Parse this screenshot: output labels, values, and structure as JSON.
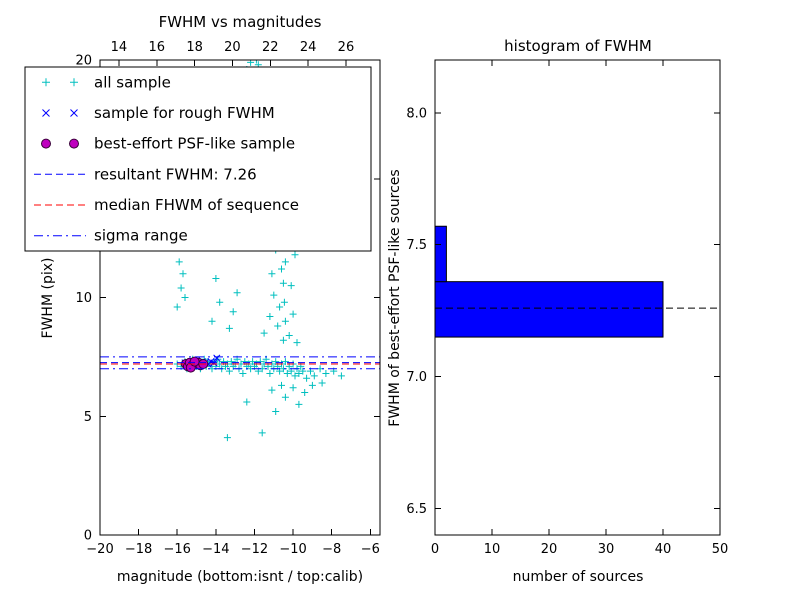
{
  "figure": {
    "background": "#ffffff"
  },
  "chart_data": [
    {
      "type": "scatter",
      "title": "FWHM vs magnitudes",
      "xlabel": "magnitude (bottom:isnt / top:calib)",
      "ylabel": "FWHM (pix)",
      "xlim": [
        -20,
        -5.5
      ],
      "ylim": [
        0,
        20
      ],
      "x_ticks": [
        -20,
        -18,
        -16,
        -14,
        -12,
        -10,
        -8,
        -6
      ],
      "top_axis": {
        "label": "calib",
        "ticks": [
          14,
          16,
          18,
          20,
          22,
          24,
          26
        ],
        "range": [
          13.0,
          27.8
        ]
      },
      "y_ticks": [
        0,
        5,
        10,
        15,
        20
      ],
      "series": [
        {
          "name": "all sample",
          "marker": "plus",
          "color": "#00bfbf",
          "points": [
            [
              -16.0,
              7.2
            ],
            [
              -15.8,
              7.1
            ],
            [
              -15.6,
              7.3
            ],
            [
              -15.5,
              7.0
            ],
            [
              -15.3,
              7.2
            ],
            [
              -15.2,
              7.4
            ],
            [
              -15.0,
              7.1
            ],
            [
              -14.9,
              7.3
            ],
            [
              -14.8,
              7.0
            ],
            [
              -14.7,
              7.2
            ],
            [
              -14.6,
              7.4
            ],
            [
              -14.5,
              7.1
            ],
            [
              -14.4,
              7.3
            ],
            [
              -14.3,
              7.2
            ],
            [
              -14.2,
              7.0
            ],
            [
              -14.1,
              7.3
            ],
            [
              -14.0,
              7.1
            ],
            [
              -13.9,
              7.4
            ],
            [
              -13.8,
              7.2
            ],
            [
              -13.7,
              7.0
            ],
            [
              -13.6,
              7.3
            ],
            [
              -13.5,
              7.1
            ],
            [
              -13.4,
              7.2
            ],
            [
              -13.3,
              6.9
            ],
            [
              -13.2,
              7.3
            ],
            [
              -13.1,
              7.1
            ],
            [
              -13.0,
              7.2
            ],
            [
              -12.9,
              7.4
            ],
            [
              -12.8,
              7.0
            ],
            [
              -12.7,
              7.2
            ],
            [
              -12.6,
              6.8
            ],
            [
              -12.5,
              7.3
            ],
            [
              -12.4,
              7.1
            ],
            [
              -12.3,
              7.2
            ],
            [
              -12.2,
              7.0
            ],
            [
              -12.1,
              7.3
            ],
            [
              -12.0,
              7.1
            ],
            [
              -11.9,
              7.2
            ],
            [
              -11.8,
              6.9
            ],
            [
              -11.7,
              7.3
            ],
            [
              -11.6,
              7.0
            ],
            [
              -11.5,
              7.2
            ],
            [
              -11.4,
              7.4
            ],
            [
              -11.3,
              7.1
            ],
            [
              -11.2,
              6.8
            ],
            [
              -11.1,
              7.2
            ],
            [
              -11.0,
              7.0
            ],
            [
              -10.9,
              7.3
            ],
            [
              -10.8,
              7.1
            ],
            [
              -10.7,
              6.9
            ],
            [
              -10.6,
              7.2
            ],
            [
              -10.5,
              7.0
            ],
            [
              -10.4,
              7.3
            ],
            [
              -10.3,
              6.8
            ],
            [
              -10.2,
              7.1
            ],
            [
              -10.1,
              6.9
            ],
            [
              -10.0,
              7.2
            ],
            [
              -9.9,
              6.7
            ],
            [
              -9.8,
              7.0
            ],
            [
              -9.7,
              6.8
            ],
            [
              -9.6,
              7.1
            ],
            [
              -9.5,
              6.9
            ],
            [
              -9.3,
              6.6
            ],
            [
              -9.1,
              6.9
            ],
            [
              -8.9,
              6.7
            ],
            [
              -8.6,
              7.0
            ],
            [
              -8.3,
              6.8
            ],
            [
              -7.9,
              6.9
            ],
            [
              -7.5,
              6.7
            ],
            [
              -10.5,
              8.2
            ],
            [
              -10.4,
              9.0
            ],
            [
              -10.45,
              9.8
            ],
            [
              -10.5,
              10.6
            ],
            [
              -10.4,
              11.5
            ],
            [
              -10.5,
              12.3
            ],
            [
              -10.45,
              13.2
            ],
            [
              -10.4,
              14.1
            ],
            [
              -10.5,
              15.0
            ],
            [
              -10.45,
              16.0
            ],
            [
              -10.4,
              17.1
            ],
            [
              -10.5,
              18.2
            ],
            [
              -10.45,
              19.3
            ],
            [
              -11.5,
              8.5
            ],
            [
              -11.2,
              9.2
            ],
            [
              -11.0,
              10.1
            ],
            [
              -10.8,
              8.8
            ],
            [
              -10.7,
              9.6
            ],
            [
              -10.6,
              11.2
            ],
            [
              -10.9,
              12.0
            ],
            [
              -11.1,
              11.0
            ],
            [
              -10.2,
              8.4
            ],
            [
              -10.0,
              9.3
            ],
            [
              -9.8,
              8.1
            ],
            [
              -10.1,
              10.5
            ],
            [
              -9.9,
              11.8
            ],
            [
              -10.3,
              12.6
            ],
            [
              -11.3,
              13.0
            ],
            [
              -13.6,
              12.2
            ],
            [
              -13.5,
              13.0
            ],
            [
              -13.4,
              14.1
            ],
            [
              -13.5,
              15.2
            ],
            [
              -13.6,
              16.0
            ],
            [
              -13.4,
              17.0
            ],
            [
              -13.5,
              18.0
            ],
            [
              -13.45,
              19.0
            ],
            [
              -13.0,
              12.5
            ],
            [
              -12.8,
              13.5
            ],
            [
              -12.4,
              19.6
            ],
            [
              -12.2,
              19.9
            ],
            [
              -12.0,
              19.4
            ],
            [
              -11.8,
              19.8
            ],
            [
              -12.3,
              18.8
            ],
            [
              -11.9,
              20.0
            ],
            [
              -11.6,
              19.5
            ],
            [
              -11.6,
              14.5
            ],
            [
              -11.4,
              15.5
            ],
            [
              -11.2,
              16.5
            ],
            [
              -11.5,
              17.5
            ],
            [
              -11.3,
              18.2
            ],
            [
              -11.6,
              4.3
            ],
            [
              -10.9,
              5.2
            ],
            [
              -10.4,
              5.8
            ],
            [
              -10.0,
              6.2
            ],
            [
              -9.7,
              5.5
            ],
            [
              -9.4,
              6.0
            ],
            [
              -10.6,
              6.3
            ],
            [
              -11.1,
              6.1
            ],
            [
              -9.0,
              6.3
            ],
            [
              -8.5,
              6.4
            ],
            [
              -13.4,
              4.1
            ],
            [
              -12.4,
              5.6
            ],
            [
              -15.9,
              11.5
            ],
            [
              -15.7,
              11.0
            ],
            [
              -15.8,
              10.4
            ],
            [
              -15.6,
              10.0
            ],
            [
              -16.0,
              9.6
            ],
            [
              -14.2,
              9.0
            ],
            [
              -13.8,
              9.8
            ],
            [
              -13.3,
              8.7
            ],
            [
              -14.0,
              10.8
            ],
            [
              -13.1,
              9.4
            ],
            [
              -12.9,
              10.2
            ]
          ]
        },
        {
          "name": "sample for rough FWHM",
          "marker": "x",
          "color": "#0000ff",
          "points": [
            [
              -15.6,
              7.25
            ],
            [
              -15.45,
              7.2
            ],
            [
              -15.3,
              7.3
            ],
            [
              -15.15,
              7.25
            ],
            [
              -15.0,
              7.35
            ],
            [
              -14.85,
              7.2
            ],
            [
              -14.7,
              7.3
            ],
            [
              -14.55,
              7.25
            ],
            [
              -14.4,
              7.2
            ],
            [
              -14.25,
              7.3
            ],
            [
              -14.1,
              7.25
            ],
            [
              -13.95,
              7.45
            ]
          ]
        },
        {
          "name": "best-effort PSF-like sample",
          "marker": "circle",
          "color": "#bf00bf",
          "edge": "#3a003a",
          "points": [
            [
              -15.55,
              7.2
            ],
            [
              -15.45,
              7.1
            ],
            [
              -15.35,
              7.25
            ],
            [
              -15.2,
              7.15
            ],
            [
              -15.05,
              7.2
            ],
            [
              -14.9,
              7.25
            ],
            [
              -14.8,
              7.15
            ],
            [
              -14.65,
              7.2
            ],
            [
              -15.3,
              7.05
            ],
            [
              -15.1,
              7.3
            ]
          ]
        }
      ],
      "hlines": [
        {
          "name": "resultant FWHM",
          "value": 7.26,
          "style": "dashed",
          "color": "#0000ff"
        },
        {
          "name": "median FWHM of sequence",
          "value": 7.2,
          "style": "dashed",
          "color": "#ff0000"
        },
        {
          "name": "sigma range low",
          "value": 7.0,
          "style": "dashdot",
          "color": "#0000ff"
        },
        {
          "name": "sigma range high",
          "value": 7.5,
          "style": "dashdot",
          "color": "#0000ff"
        }
      ],
      "legend": {
        "entries": [
          {
            "label": "all sample",
            "type": "marker-plus",
            "color": "#00bfbf"
          },
          {
            "label": "sample for rough FWHM",
            "type": "marker-x",
            "color": "#0000ff"
          },
          {
            "label": "best-effort PSF-like sample",
            "type": "marker-circle",
            "color": "#bf00bf",
            "edge": "#3a003a"
          },
          {
            "label": "resultant FWHM: 7.26",
            "type": "line-dashed",
            "color": "#0000ff"
          },
          {
            "label": "median FHWM of sequence",
            "type": "line-dashed",
            "color": "#ff0000"
          },
          {
            "label": "sigma range",
            "type": "line-dashdot",
            "color": "#0000ff"
          }
        ]
      },
      "resultant_fwhm": 7.26
    },
    {
      "type": "bar-horizontal",
      "title": "histogram of FWHM",
      "xlabel": "number of sources",
      "ylabel": "FWHM of best-effort PSF-like sources",
      "xlim": [
        0,
        50
      ],
      "ylim": [
        6.4,
        8.2
      ],
      "x_ticks": [
        0,
        10,
        20,
        30,
        40,
        50
      ],
      "y_ticks": [
        6.5,
        7.0,
        7.5,
        8.0
      ],
      "bar_color": "#0000ff",
      "bars": [
        {
          "from": 7.15,
          "to": 7.36,
          "count": 40
        },
        {
          "from": 7.36,
          "to": 7.57,
          "count": 2
        }
      ],
      "hline": {
        "name": "median FWHM",
        "value": 7.26,
        "style": "dashed",
        "color": "#000000"
      }
    }
  ]
}
